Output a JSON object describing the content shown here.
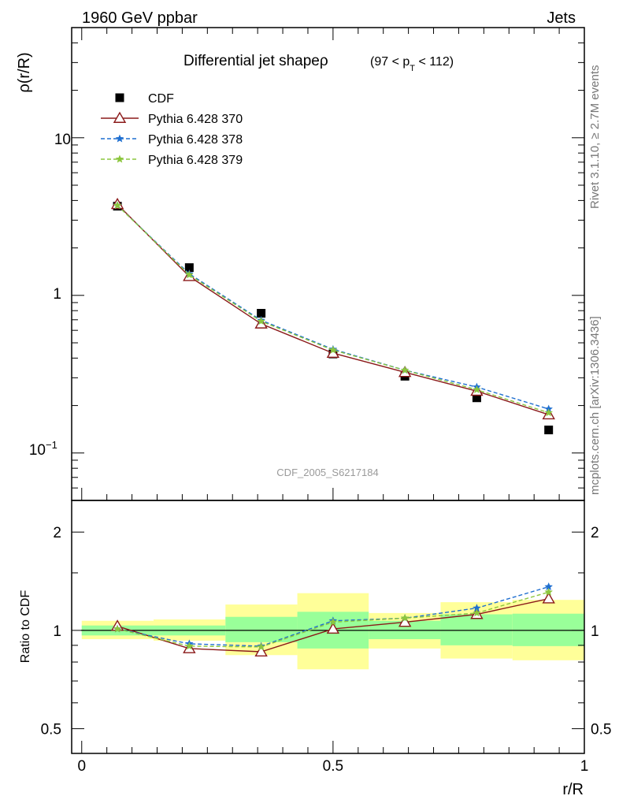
{
  "header": {
    "left_label": "1960 GeV ppbar",
    "right_label": "Jets"
  },
  "side_labels": {
    "rivet": "Rivet 3.1.10, ≥ 2.7M events",
    "site": "mcplots.cern.ch [arXiv:1306.3436]"
  },
  "chart_data": [
    {
      "type": "line",
      "title_main": "Differential jet shapeρ",
      "title_cut_open": "(97 < p",
      "title_cut_sub": "T",
      "title_cut_close": " < 112)",
      "ylabel": "ρ(r/R)",
      "xlabel": "",
      "yscale": "log",
      "ylim": [
        0.05,
        50
      ],
      "xlim": [
        -0.02,
        1.0
      ],
      "ytick_labels": {
        "ten": "10",
        "one": "1",
        "tenth_base": "10",
        "tenth_exp": "−1"
      },
      "watermark": "CDF_2005_S6217184",
      "legend_position": "top-left",
      "x": [
        0.071,
        0.214,
        0.357,
        0.5,
        0.643,
        0.786,
        0.929
      ],
      "series": [
        {
          "name": "CDF",
          "marker": "square",
          "color": "#000000",
          "values": [
            3.68,
            1.5,
            0.77,
            0.425,
            0.307,
            0.224,
            0.14
          ]
        },
        {
          "name": "Pythia 6.428 370",
          "marker": "open-triangle",
          "line": "solid",
          "color": "#8b1a1a",
          "values": [
            3.78,
            1.32,
            0.66,
            0.43,
            0.325,
            0.247,
            0.175
          ]
        },
        {
          "name": "Pythia 6.428 378",
          "marker": "star",
          "line": "dashed",
          "color": "#1f6fd0",
          "values": [
            3.72,
            1.37,
            0.695,
            0.455,
            0.335,
            0.262,
            0.19
          ]
        },
        {
          "name": "Pythia 6.428 379",
          "marker": "star",
          "line": "dashed",
          "color": "#8cc63e",
          "values": [
            3.72,
            1.35,
            0.685,
            0.45,
            0.335,
            0.252,
            0.18
          ]
        }
      ]
    },
    {
      "type": "line",
      "ylabel": "Ratio to CDF",
      "xlabel": "r/R",
      "yscale": "log",
      "ylim": [
        0.42,
        2.5
      ],
      "xlim": [
        -0.02,
        1.0
      ],
      "yticks": [
        0.5,
        1,
        2
      ],
      "ytick_labels": [
        "0.5",
        "1",
        "2"
      ],
      "xticks": [
        0,
        0.5,
        1
      ],
      "xtick_labels": [
        "0",
        "0.5",
        "1"
      ],
      "x": [
        0.071,
        0.214,
        0.357,
        0.5,
        0.643,
        0.786,
        0.929
      ],
      "bands": [
        {
          "x0": 0.0,
          "x1": 0.143,
          "yellow": [
            0.94,
            1.07
          ],
          "green": [
            0.965,
            1.035
          ]
        },
        {
          "x0": 0.143,
          "x1": 0.286,
          "yellow": [
            0.93,
            1.08
          ],
          "green": [
            0.965,
            1.035
          ]
        },
        {
          "x0": 0.286,
          "x1": 0.429,
          "yellow": [
            0.84,
            1.2
          ],
          "green": [
            0.92,
            1.1
          ]
        },
        {
          "x0": 0.429,
          "x1": 0.571,
          "yellow": [
            0.76,
            1.3
          ],
          "green": [
            0.88,
            1.14
          ]
        },
        {
          "x0": 0.571,
          "x1": 0.714,
          "yellow": [
            0.88,
            1.13
          ],
          "green": [
            0.94,
            1.07
          ]
        },
        {
          "x0": 0.714,
          "x1": 0.857,
          "yellow": [
            0.82,
            1.22
          ],
          "green": [
            0.9,
            1.12
          ]
        },
        {
          "x0": 0.857,
          "x1": 1.0,
          "yellow": [
            0.81,
            1.24
          ],
          "green": [
            0.895,
            1.125
          ]
        }
      ],
      "series": [
        {
          "name": "Pythia 6.428 370",
          "marker": "open-triangle",
          "line": "solid",
          "color": "#8b1a1a",
          "values": [
            1.03,
            0.88,
            0.86,
            1.01,
            1.06,
            1.12,
            1.25
          ]
        },
        {
          "name": "Pythia 6.428 378",
          "marker": "star",
          "line": "dashed",
          "color": "#1f6fd0",
          "values": [
            1.01,
            0.91,
            0.895,
            1.07,
            1.09,
            1.17,
            1.36
          ]
        },
        {
          "name": "Pythia 6.428 379",
          "marker": "star",
          "line": "dashed",
          "color": "#8cc63e",
          "values": [
            1.01,
            0.895,
            0.89,
            1.06,
            1.09,
            1.13,
            1.31
          ]
        }
      ]
    }
  ]
}
